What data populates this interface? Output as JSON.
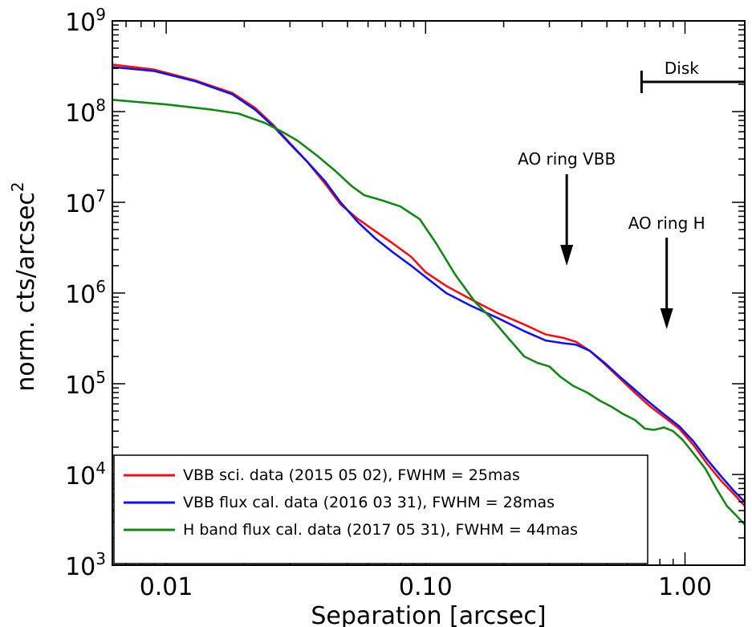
{
  "chart_data": {
    "type": "line",
    "xscale": "log",
    "yscale": "log",
    "xlabel": "Separation [arcsec]",
    "ylabel": "norm. cts/arcsec",
    "ylabel_sup": "2",
    "xlim": [
      0.0062,
      1.7
    ],
    "ylim": [
      1000,
      1000000000
    ],
    "x_ticks": [
      {
        "value": 0.01,
        "label": "0.01"
      },
      {
        "value": 0.1,
        "label": "0.10"
      },
      {
        "value": 1.0,
        "label": "1.00"
      }
    ],
    "y_ticks": [
      {
        "value": 1000,
        "base": "10",
        "exp": "3"
      },
      {
        "value": 10000,
        "base": "10",
        "exp": "4"
      },
      {
        "value": 100000,
        "base": "10",
        "exp": "5"
      },
      {
        "value": 1000000,
        "base": "10",
        "exp": "6"
      },
      {
        "value": 10000000,
        "base": "10",
        "exp": "7"
      },
      {
        "value": 100000000,
        "base": "10",
        "exp": "8"
      },
      {
        "value": 1000000000,
        "base": "10",
        "exp": "9"
      }
    ],
    "series": [
      {
        "name": "VBB sci. data (2015 05 02), FWHM = 25mas",
        "color": "#e8141a",
        "x": [
          0.0062,
          0.009,
          0.013,
          0.018,
          0.022,
          0.026,
          0.03,
          0.035,
          0.041,
          0.047,
          0.055,
          0.064,
          0.075,
          0.088,
          0.1,
          0.12,
          0.15,
          0.19,
          0.24,
          0.29,
          0.34,
          0.38,
          0.43,
          0.49,
          0.56,
          0.64,
          0.73,
          0.83,
          0.95,
          1.08,
          1.22,
          1.38,
          1.55,
          1.7
        ],
        "y": [
          330000000,
          290000000,
          220000000,
          160000000,
          110000000,
          70000000,
          45000000,
          28000000,
          16000000,
          9500000,
          6500000,
          4800000,
          3500000,
          2500000,
          1700000,
          1200000,
          850000,
          600000,
          450000,
          350000,
          320000,
          290000,
          230000,
          165000,
          115000,
          80000,
          57000,
          43000,
          32000,
          21000,
          13000,
          8500,
          6000,
          4500
        ]
      },
      {
        "name": "VBB flux cal. data (2016 03 31), FWHM = 28mas",
        "color": "#1414e0",
        "x": [
          0.0062,
          0.009,
          0.013,
          0.018,
          0.022,
          0.026,
          0.03,
          0.035,
          0.041,
          0.047,
          0.055,
          0.064,
          0.075,
          0.088,
          0.1,
          0.12,
          0.15,
          0.19,
          0.24,
          0.29,
          0.34,
          0.38,
          0.43,
          0.49,
          0.56,
          0.64,
          0.73,
          0.83,
          0.95,
          1.08,
          1.22,
          1.38,
          1.55,
          1.7
        ],
        "y": [
          310000000,
          280000000,
          215000000,
          155000000,
          105000000,
          68000000,
          44000000,
          28000000,
          17000000,
          10000000,
          6000000,
          4000000,
          2800000,
          2000000,
          1500000,
          1000000,
          720000,
          530000,
          380000,
          300000,
          280000,
          270000,
          230000,
          170000,
          120000,
          86000,
          62000,
          46000,
          34000,
          23000,
          14500,
          9500,
          6500,
          5000
        ]
      },
      {
        "name": "H band flux cal. data (2017 05 31), FWHM = 44mas",
        "color": "#168616",
        "x": [
          0.0062,
          0.01,
          0.015,
          0.019,
          0.024,
          0.028,
          0.032,
          0.038,
          0.045,
          0.052,
          0.058,
          0.068,
          0.08,
          0.095,
          0.11,
          0.13,
          0.155,
          0.18,
          0.21,
          0.24,
          0.27,
          0.3,
          0.33,
          0.37,
          0.42,
          0.47,
          0.52,
          0.58,
          0.64,
          0.7,
          0.76,
          0.83,
          0.9,
          0.98,
          1.08,
          1.2,
          1.32,
          1.45,
          1.58,
          1.7
        ],
        "y": [
          135000000,
          120000000,
          105000000,
          95000000,
          75000000,
          60000000,
          48000000,
          33000000,
          22000000,
          15000000,
          12000000,
          10500000,
          9000000,
          6500000,
          3500000,
          1600000,
          800000,
          520000,
          310000,
          200000,
          170000,
          155000,
          120000,
          95000,
          80000,
          65000,
          56000,
          46000,
          40000,
          32000,
          31000,
          33000,
          30000,
          24000,
          17000,
          11500,
          7000,
          4500,
          3500,
          2800
        ]
      }
    ],
    "annotations": [
      {
        "text": "AO ring VBB",
        "x": 0.35,
        "y_tip": 2000000
      },
      {
        "text": "AO ring H",
        "x": 0.85,
        "y_tip": 400000
      }
    ],
    "disk_bar": {
      "text": "Disk",
      "x_start": 0.68,
      "x_end": 1.7,
      "y": 200000000
    },
    "legend_position": "bottom-left"
  }
}
